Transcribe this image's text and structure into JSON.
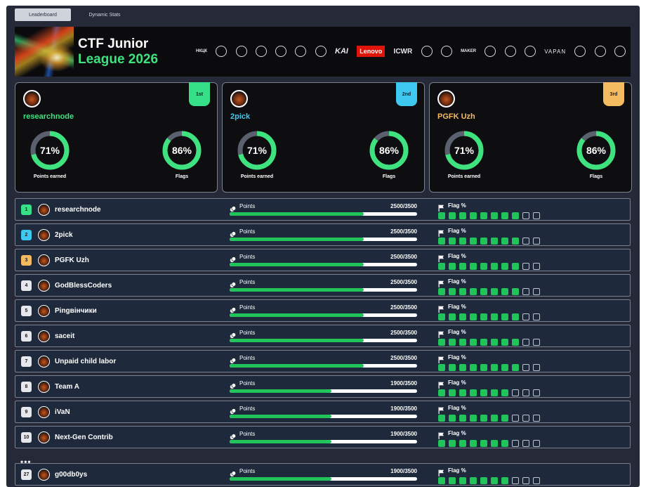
{
  "tabs": [
    {
      "label": "Leaderboard",
      "active": true
    },
    {
      "label": "Dynamic Stats",
      "active": false
    }
  ],
  "banner": {
    "title_line1": "CTF Junior",
    "title_line2": "League 2026",
    "logos": [
      "НКЦК",
      "",
      "",
      "",
      "",
      "",
      "",
      "KAI",
      "Lenovo",
      "ICWR",
      "",
      "",
      "MAKER",
      "",
      "",
      "",
      "VAPAN",
      "",
      "",
      ""
    ]
  },
  "colors": {
    "gold": "#3ee27e",
    "first": "#36e088",
    "second": "#3fc9f0",
    "third": "#f5bb60",
    "bar_fill": "#21c45a",
    "ring_track": "#5a606e"
  },
  "podium": [
    {
      "badge": "1st",
      "name": "researchnode",
      "name_color": "#3ee27e",
      "badge_color": "#36e088",
      "points_pct": "71%",
      "points_fraction": 0.71,
      "points_label": "Points earned",
      "flags_pct": "86%",
      "flags_fraction": 0.86,
      "flags_label": "Flags"
    },
    {
      "badge": "2nd",
      "name": "2pick",
      "name_color": "#3fc9f0",
      "badge_color": "#3fc9f0",
      "points_pct": "71%",
      "points_fraction": 0.71,
      "points_label": "Points earned",
      "flags_pct": "86%",
      "flags_fraction": 0.86,
      "flags_label": "Flags"
    },
    {
      "badge": "3rd",
      "name": "PGFK Uzh",
      "name_color": "#f5bb60",
      "badge_color": "#f5bb60",
      "points_pct": "71%",
      "points_fraction": 0.71,
      "points_label": "Points earned",
      "flags_pct": "86%",
      "flags_fraction": 0.86,
      "flags_label": "Flags"
    }
  ],
  "labels": {
    "points": "Points",
    "flags": "Flag %"
  },
  "rows": [
    {
      "rank": "1",
      "rank_color": "#36e088",
      "name": "researchnode",
      "points": "2500/3500",
      "points_fraction": 0.714,
      "flags_on": 8,
      "flags_total": 10
    },
    {
      "rank": "2",
      "rank_color": "#3fc9f0",
      "name": "2pick",
      "points": "2500/3500",
      "points_fraction": 0.714,
      "flags_on": 8,
      "flags_total": 10
    },
    {
      "rank": "3",
      "rank_color": "#f5bb60",
      "name": "PGFK Uzh",
      "points": "2500/3500",
      "points_fraction": 0.714,
      "flags_on": 8,
      "flags_total": 10
    },
    {
      "rank": "4",
      "rank_color": "#e6e8ee",
      "name": "GodBlessCoders",
      "points": "2500/3500",
      "points_fraction": 0.714,
      "flags_on": 8,
      "flags_total": 10
    },
    {
      "rank": "5",
      "rank_color": "#e6e8ee",
      "name": "Рingвінчики",
      "points": "2500/3500",
      "points_fraction": 0.714,
      "flags_on": 8,
      "flags_total": 10
    },
    {
      "rank": "6",
      "rank_color": "#e6e8ee",
      "name": "saceit",
      "points": "2500/3500",
      "points_fraction": 0.714,
      "flags_on": 8,
      "flags_total": 10
    },
    {
      "rank": "7",
      "rank_color": "#e6e8ee",
      "name": "Unpaid child labor",
      "points": "2500/3500",
      "points_fraction": 0.714,
      "flags_on": 8,
      "flags_total": 10
    },
    {
      "rank": "8",
      "rank_color": "#e6e8ee",
      "name": "Team A",
      "points": "1900/3500",
      "points_fraction": 0.543,
      "flags_on": 7,
      "flags_total": 10
    },
    {
      "rank": "9",
      "rank_color": "#e6e8ee",
      "name": "iVaN",
      "points": "1900/3500",
      "points_fraction": 0.543,
      "flags_on": 7,
      "flags_total": 10
    },
    {
      "rank": "10",
      "rank_color": "#e6e8ee",
      "name": "Next-Gen Contrib",
      "points": "1900/3500",
      "points_fraction": 0.543,
      "flags_on": 7,
      "flags_total": 10
    },
    {
      "rank": "27",
      "rank_color": "#e6e8ee",
      "name": "g00db0ys",
      "points": "1900/3500",
      "points_fraction": 0.543,
      "flags_on": 7,
      "flags_total": 10
    }
  ],
  "ellipsis": "•••"
}
